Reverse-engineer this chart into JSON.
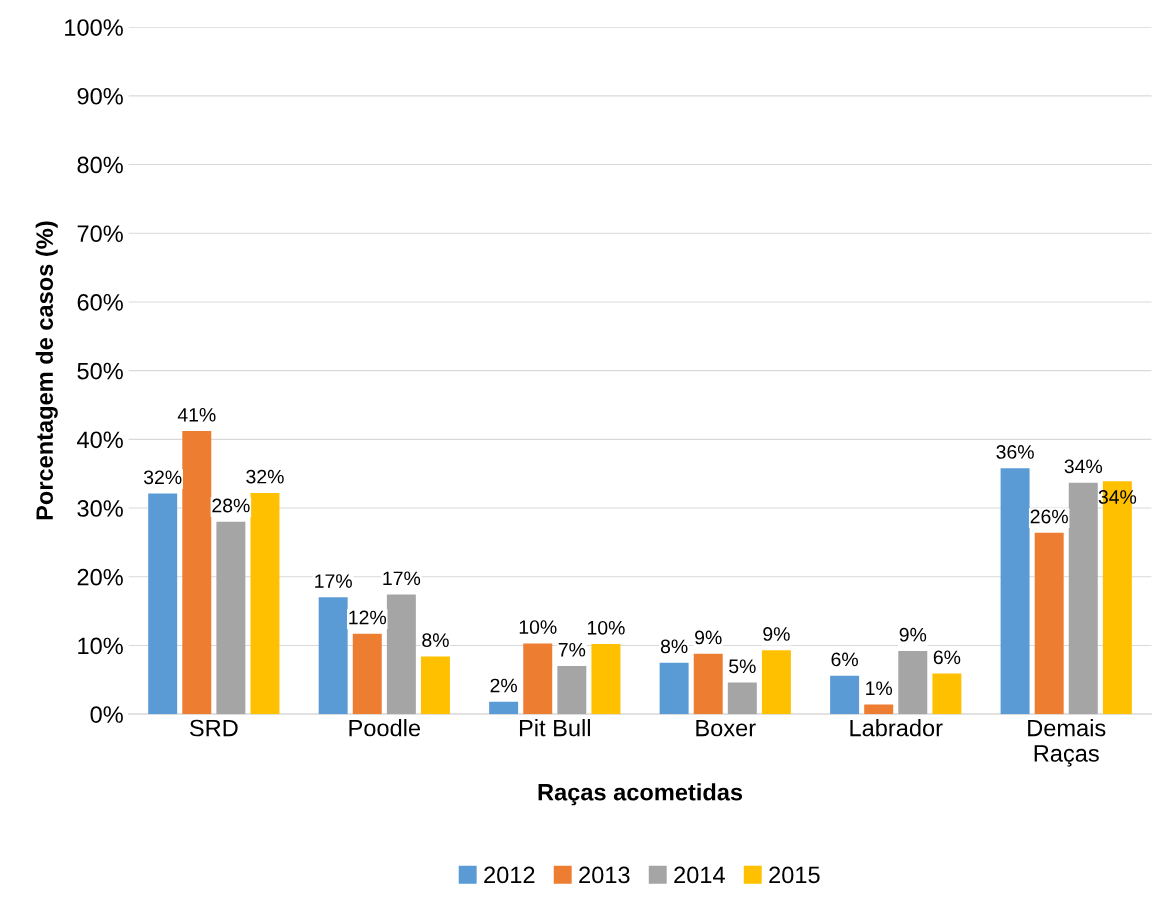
{
  "chart_data": {
    "type": "bar",
    "xlabel": "Raças acometidas",
    "ylabel": "Porcentagem de casos (%)",
    "categories": [
      "SRD",
      "Poodle",
      "Pit Bull",
      "Boxer",
      "Labrador",
      "Demais\nRaças"
    ],
    "series": [
      {
        "name": "2012",
        "color": "#5b9bd5",
        "values": [
          32.1,
          17,
          1.8,
          7.5,
          5.6,
          35.8
        ],
        "value_labels": [
          "32%",
          "17%",
          "2%",
          "8%",
          "6%",
          "36%"
        ]
      },
      {
        "name": "2013",
        "color": "#ed7d31",
        "values": [
          41.2,
          11.7,
          10.3,
          8.8,
          1.4,
          26.4
        ],
        "value_labels": [
          "41%",
          "12%",
          "10%",
          "9%",
          "1%",
          "26%"
        ]
      },
      {
        "name": "2014",
        "color": "#a5a5a5",
        "values": [
          28,
          17.4,
          7,
          4.6,
          9.2,
          33.7
        ],
        "value_labels": [
          "28%",
          "17%",
          "7%",
          "5%",
          "9%",
          "34%"
        ]
      },
      {
        "name": "2015",
        "color": "#ffc000",
        "values": [
          32.2,
          8.4,
          10.2,
          9.3,
          5.9,
          33.9
        ],
        "value_labels": [
          "32%",
          "8%",
          "10%",
          "9%",
          "6%",
          "34%"
        ]
      }
    ],
    "ylim": [
      0,
      100
    ],
    "yticks": [
      {
        "value": 0,
        "label": "0%"
      },
      {
        "value": 10,
        "label": "10%"
      },
      {
        "value": 20,
        "label": "20%"
      },
      {
        "value": 30,
        "label": "30%"
      },
      {
        "value": 40,
        "label": "40%"
      },
      {
        "value": 50,
        "label": "50%"
      },
      {
        "value": 60,
        "label": "60%"
      },
      {
        "value": 70,
        "label": "70%"
      },
      {
        "value": 80,
        "label": "80%"
      },
      {
        "value": 90,
        "label": "90%"
      },
      {
        "value": 100,
        "label": "100%"
      }
    ],
    "grid": "y",
    "legend": "bottom"
  }
}
